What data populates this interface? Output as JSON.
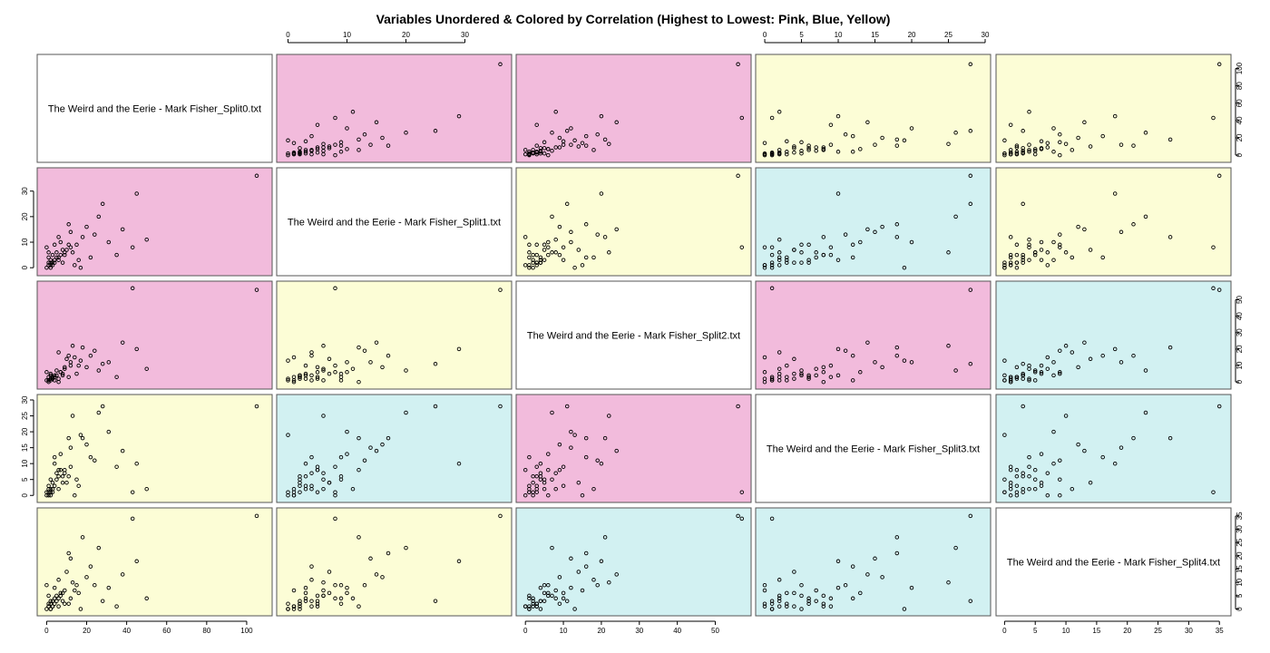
{
  "chart_data": {
    "type": "scatter",
    "title": "Variables Unordered & Colored by Correlation (Highest to Lowest: Pink, Blue, Yellow)",
    "variables": [
      {
        "label": "The Weird and the Eerie - Mark Fisher_Split0.txt",
        "range": [
          -2,
          110
        ],
        "ticks": [
          0,
          20,
          40,
          60,
          80,
          100
        ]
      },
      {
        "label": "The Weird and the Eerie - Mark Fisher_Split1.txt",
        "range": [
          -1,
          37
        ],
        "ticks": [
          0,
          10,
          20,
          30
        ]
      },
      {
        "label": "The Weird and the Eerie - Mark Fisher_Split2.txt",
        "range": [
          -1,
          58
        ],
        "ticks": [
          0,
          10,
          20,
          30,
          40,
          50
        ]
      },
      {
        "label": "The Weird and the Eerie - Mark Fisher_Split3.txt",
        "range": [
          -0.5,
          30
        ],
        "ticks": [
          0,
          5,
          10,
          15,
          20,
          25,
          30
        ]
      },
      {
        "label": "The Weird and the Eerie - Mark Fisher_Split4.txt",
        "range": [
          -0.5,
          36
        ],
        "ticks": [
          0,
          5,
          10,
          15,
          20,
          25,
          30,
          35
        ]
      }
    ],
    "panel_colors": [
      [
        null,
        "pink",
        "pink",
        "yellow",
        "yellow"
      ],
      [
        "pink",
        null,
        "yellow",
        "blue",
        "yellow"
      ],
      [
        "pink",
        "yellow",
        null,
        "pink",
        "blue"
      ],
      [
        "yellow",
        "blue",
        "pink",
        null,
        "blue"
      ],
      [
        "yellow",
        "yellow",
        "blue",
        "blue",
        null
      ]
    ],
    "color_values": {
      "pink": "#f2bbdc",
      "blue": "#d2f1f2",
      "yellow": "#fcfdd6",
      "diag": "#ffffff"
    },
    "records": [
      [
        105,
        36,
        56,
        28,
        35
      ],
      [
        45,
        29,
        20,
        10,
        18
      ],
      [
        28,
        25,
        11,
        28,
        3
      ],
      [
        43,
        8,
        57,
        1,
        34
      ],
      [
        50,
        11,
        8,
        2,
        4
      ],
      [
        35,
        5,
        3,
        9,
        1
      ],
      [
        26,
        20,
        7,
        26,
        23
      ],
      [
        18,
        12,
        21,
        18,
        27
      ],
      [
        22,
        4,
        16,
        12,
        16
      ],
      [
        13,
        6,
        22,
        25,
        10
      ],
      [
        11,
        17,
        16,
        18,
        21
      ],
      [
        8,
        2,
        4,
        6,
        3
      ],
      [
        15,
        9,
        5,
        5,
        9
      ],
      [
        16,
        3,
        10,
        3,
        6
      ],
      [
        12,
        14,
        12,
        15,
        19
      ],
      [
        10,
        7,
        14,
        4,
        14
      ],
      [
        9,
        5,
        9,
        8,
        2
      ],
      [
        7,
        10,
        6,
        13,
        6
      ],
      [
        6,
        4,
        18,
        2,
        11
      ],
      [
        5,
        6,
        7,
        5,
        5
      ],
      [
        4,
        3,
        4,
        10,
        8
      ],
      [
        3,
        2,
        2,
        4,
        1
      ],
      [
        2,
        1,
        1,
        1,
        0
      ],
      [
        1,
        2,
        3,
        1,
        2
      ],
      [
        2,
        3,
        5,
        2,
        3
      ],
      [
        1,
        1,
        0,
        0,
        1
      ],
      [
        0,
        0,
        1,
        1,
        0
      ],
      [
        4,
        2,
        3,
        3,
        2
      ],
      [
        6,
        3,
        2,
        6,
        4
      ],
      [
        5,
        4,
        4,
        7,
        3
      ],
      [
        3,
        1,
        3,
        2,
        1
      ],
      [
        7,
        5,
        6,
        8,
        5
      ],
      [
        9,
        6,
        8,
        7,
        7
      ],
      [
        12,
        8,
        10,
        9,
        4
      ],
      [
        20,
        16,
        9,
        16,
        12
      ],
      [
        24,
        13,
        19,
        11,
        9
      ],
      [
        31,
        10,
        12,
        20,
        8
      ],
      [
        38,
        15,
        24,
        14,
        13
      ],
      [
        2,
        0,
        2,
        0,
        2
      ],
      [
        1,
        4,
        1,
        3,
        1
      ],
      [
        3,
        5,
        2,
        1,
        3
      ],
      [
        2,
        2,
        4,
        5,
        0
      ],
      [
        8,
        7,
        5,
        4,
        6
      ],
      [
        11,
        9,
        3,
        6,
        2
      ],
      [
        14,
        1,
        15,
        0,
        7
      ],
      [
        17,
        0,
        13,
        19,
        0
      ],
      [
        4,
        9,
        1,
        12,
        4
      ],
      [
        6,
        12,
        0,
        8,
        1
      ],
      [
        0,
        8,
        6,
        0,
        9
      ],
      [
        1,
        6,
        1,
        2,
        5
      ]
    ]
  }
}
